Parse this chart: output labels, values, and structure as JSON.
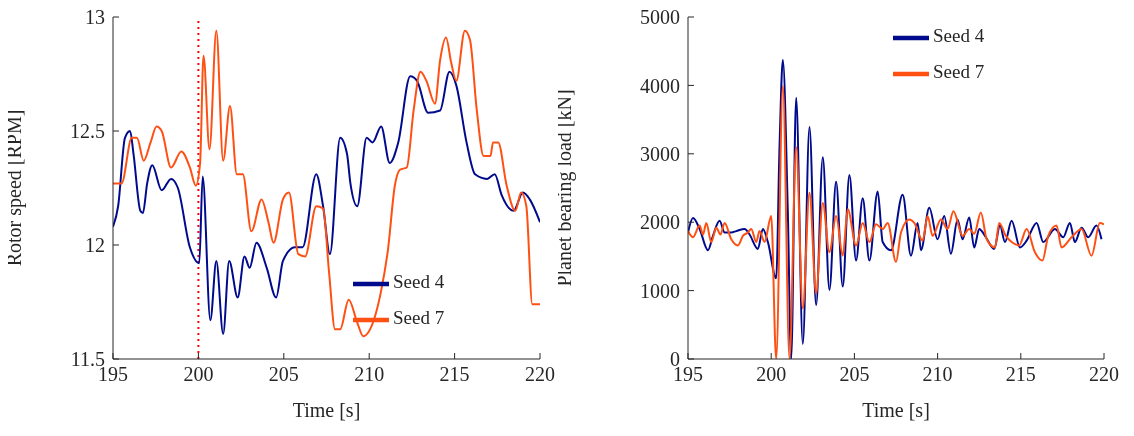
{
  "chart_data": [
    {
      "type": "line",
      "xlabel": "Time [s]",
      "ylabel": "Rotor speed [RPM]",
      "xlim": [
        195,
        220
      ],
      "xticks": [
        195,
        200,
        205,
        210,
        215,
        220
      ],
      "ylim": [
        11.5,
        13
      ],
      "yticks": [
        11.5,
        12,
        12.5,
        13
      ],
      "legend": "bottom right",
      "ref_lines": [
        {
          "axis": "x",
          "value": 200,
          "color": "#ff0000",
          "line_style": "dotted"
        }
      ],
      "series": [
        {
          "name": "Seed 4",
          "color": "#000a8c",
          "x": [
            195,
            195.3,
            195.7,
            196.0,
            196.2,
            196.6,
            196.75,
            197.0,
            197.3,
            197.85,
            198.4,
            198.8,
            199.5,
            200.05,
            200.25,
            200.7,
            201.05,
            201.45,
            201.8,
            202.3,
            202.7,
            203.0,
            203.4,
            204.0,
            204.55,
            204.95,
            205.65,
            206.1,
            206.9,
            207.3,
            207.7,
            208.3,
            208.7,
            208.9,
            209.3,
            209.85,
            210.2,
            210.7,
            211.2,
            211.7,
            212.4,
            212.8,
            213.45,
            214.15,
            214.7,
            215.1,
            215.7,
            216.2,
            216.9,
            217.35,
            217.75,
            218.45,
            219.0,
            219.4,
            220
          ],
          "values": [
            12.08,
            12.17,
            12.47,
            12.5,
            12.4,
            12.15,
            12.14,
            12.27,
            12.35,
            12.24,
            12.29,
            12.25,
            11.99,
            11.92,
            12.3,
            11.67,
            11.93,
            11.61,
            11.93,
            11.77,
            11.95,
            11.9,
            12.01,
            11.9,
            11.77,
            11.93,
            11.99,
            11.99,
            12.31,
            12.17,
            11.96,
            12.47,
            12.4,
            12.27,
            12.17,
            12.47,
            12.45,
            12.52,
            12.36,
            12.45,
            12.74,
            12.72,
            12.58,
            12.59,
            12.76,
            12.7,
            12.45,
            12.31,
            12.29,
            12.31,
            12.22,
            12.15,
            12.23,
            12.2,
            12.1
          ]
        },
        {
          "name": "Seed 7",
          "color": "#ff5014",
          "x": [
            195,
            195.5,
            196.1,
            196.4,
            196.8,
            197.2,
            197.55,
            197.85,
            198.4,
            199.0,
            199.5,
            199.85,
            200.1,
            200.3,
            200.65,
            201.05,
            201.45,
            201.85,
            202.25,
            202.6,
            203.1,
            203.7,
            204.1,
            204.4,
            204.95,
            205.3,
            205.85,
            206.25,
            206.9,
            207.3,
            207.65,
            208.0,
            208.3,
            208.8,
            209.3,
            209.65,
            210.05,
            210.7,
            211.1,
            211.5,
            211.8,
            212.2,
            212.6,
            213.0,
            213.35,
            213.85,
            214.15,
            214.5,
            214.8,
            215.1,
            215.6,
            215.9,
            216.3,
            216.7,
            217.1,
            217.25,
            217.55,
            218.05,
            218.55,
            218.9,
            219.2,
            219.55,
            220
          ],
          "values": [
            12.27,
            12.27,
            12.47,
            12.47,
            12.37,
            12.45,
            12.52,
            12.5,
            12.34,
            12.41,
            12.34,
            12.26,
            12.36,
            12.83,
            12.42,
            12.94,
            12.37,
            12.61,
            12.31,
            12.31,
            12.06,
            12.2,
            12.1,
            12.01,
            12.2,
            12.23,
            11.96,
            11.95,
            12.17,
            12.16,
            11.88,
            11.63,
            11.63,
            11.76,
            11.66,
            11.6,
            11.63,
            11.8,
            11.98,
            12.26,
            12.33,
            12.34,
            12.59,
            12.76,
            12.72,
            12.62,
            12.81,
            12.91,
            12.8,
            12.72,
            12.94,
            12.9,
            12.59,
            12.39,
            12.39,
            12.45,
            12.45,
            12.26,
            12.15,
            12.23,
            12.17,
            11.74,
            11.74
          ]
        }
      ]
    },
    {
      "type": "line",
      "xlabel": "Time [s]",
      "ylabel": "Planet bearing load [kN]",
      "xlim": [
        195,
        220
      ],
      "xticks": [
        195,
        200,
        205,
        210,
        215,
        220
      ],
      "ylim": [
        0,
        5000
      ],
      "yticks": [
        0,
        1000,
        2000,
        3000,
        4000,
        5000
      ],
      "legend": "top right",
      "series": [
        {
          "name": "Seed 4",
          "color": "#000a8c",
          "x": [
            195,
            195.3,
            195.7,
            196.2,
            196.5,
            196.9,
            197.2,
            197.6,
            197.9,
            198.4,
            198.7,
            199.2,
            199.5,
            199.8,
            200.3,
            200.5,
            200.7,
            201.0,
            201.2,
            201.5,
            201.9,
            202.3,
            202.7,
            203.1,
            203.5,
            203.9,
            204.3,
            204.7,
            205.1,
            205.5,
            205.9,
            206.4,
            206.7,
            207.2,
            207.9,
            208.4,
            208.8,
            209.0,
            209.5,
            210.0,
            210.4,
            210.8,
            211.2,
            211.5,
            211.9,
            212.2,
            212.5,
            212.9,
            213.4,
            213.75,
            214.05,
            214.45,
            214.95,
            215.35,
            215.95,
            216.35,
            217.05,
            217.55,
            217.95,
            218.25,
            218.65,
            219.05,
            219.55,
            219.85
          ],
          "values": [
            1850,
            2060,
            1900,
            1590,
            1800,
            2020,
            1850,
            1850,
            1870,
            1900,
            1820,
            1610,
            1900,
            1710,
            1180,
            3100,
            4370,
            2140,
            0,
            3820,
            220,
            3390,
            790,
            2950,
            1010,
            2590,
            1060,
            2690,
            1440,
            2350,
            1440,
            2450,
            1710,
            1590,
            2400,
            1510,
            1990,
            1590,
            2210,
            1750,
            2090,
            1540,
            2040,
            1750,
            2070,
            1630,
            1900,
            1780,
            1610,
            1950,
            1710,
            2020,
            1630,
            1730,
            1990,
            1710,
            1900,
            1780,
            1990,
            1710,
            1920,
            1780,
            1950,
            1750
          ]
        },
        {
          "name": "Seed 7",
          "color": "#ff5014",
          "x": [
            195,
            195.3,
            195.7,
            195.9,
            196.1,
            196.4,
            196.7,
            196.95,
            197.2,
            197.6,
            198.0,
            198.3,
            198.6,
            198.8,
            199.1,
            199.3,
            199.6,
            200.0,
            200.3,
            200.7,
            201.1,
            201.5,
            201.9,
            202.3,
            202.7,
            203.1,
            203.5,
            203.9,
            204.3,
            204.6,
            205.1,
            205.5,
            205.9,
            206.3,
            206.7,
            207.0,
            207.5,
            207.8,
            208.3,
            208.6,
            209.1,
            209.4,
            209.7,
            210.2,
            210.6,
            210.95,
            211.5,
            211.9,
            212.2,
            212.6,
            212.95,
            213.45,
            213.7,
            214.1,
            214.45,
            214.9,
            215.35,
            215.85,
            216.3,
            216.65,
            217.15,
            217.45,
            218.05,
            218.65,
            219.25,
            219.75,
            220
          ],
          "values": [
            1870,
            1780,
            1950,
            1820,
            1990,
            1710,
            1920,
            1820,
            1990,
            1750,
            1660,
            1800,
            1850,
            1900,
            1710,
            1870,
            1710,
            2090,
            0,
            3990,
            0,
            3100,
            740,
            2430,
            960,
            2280,
            1560,
            2090,
            1510,
            2190,
            1660,
            1990,
            1710,
            1970,
            1900,
            1990,
            1420,
            1850,
            2040,
            1990,
            1730,
            2090,
            1800,
            2040,
            1900,
            2160,
            1800,
            1900,
            1830,
            2140,
            1750,
            1630,
            1990,
            1800,
            1710,
            1660,
            1900,
            1560,
            1440,
            1800,
            1950,
            1630,
            1780,
            1900,
            1510,
            1990,
            1970
          ]
        }
      ]
    }
  ]
}
